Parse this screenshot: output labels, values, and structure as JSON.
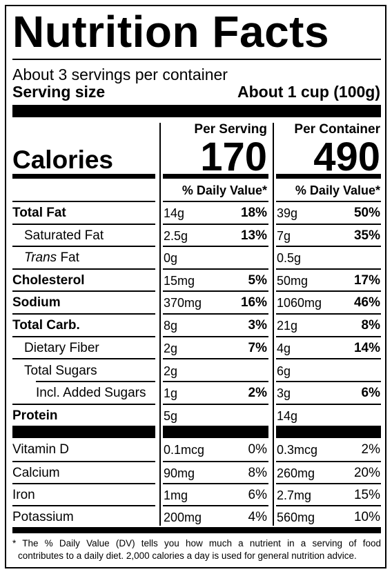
{
  "title": "Nutrition Facts",
  "servings_per_container": "About 3 servings per container",
  "serving_size_label": "Serving size",
  "serving_size_value": "About 1 cup (100g)",
  "per_serving_label": "Per Serving",
  "per_container_label": "Per Container",
  "calories_label": "Calories",
  "calories_per_serving": "170",
  "calories_per_container": "490",
  "dv_label": "% Daily Value*",
  "nutrients": [
    {
      "name": "Total Fat",
      "ps_amt": "14g",
      "ps_pct": "18%",
      "pc_amt": "39g",
      "pc_pct": "50%"
    },
    {
      "name": "Saturated Fat",
      "ps_amt": "2.5g",
      "ps_pct": "13%",
      "pc_amt": "7g",
      "pc_pct": "35%"
    },
    {
      "name_italic": "Trans",
      "name_rest": " Fat",
      "ps_amt": "0g",
      "ps_pct": "",
      "pc_amt": "0.5g",
      "pc_pct": ""
    },
    {
      "name": "Cholesterol",
      "ps_amt": "15mg",
      "ps_pct": "5%",
      "pc_amt": "50mg",
      "pc_pct": "17%"
    },
    {
      "name": "Sodium",
      "ps_amt": "370mg",
      "ps_pct": "16%",
      "pc_amt": "1060mg",
      "pc_pct": "46%"
    },
    {
      "name": "Total Carb.",
      "ps_amt": "8g",
      "ps_pct": "3%",
      "pc_amt": "21g",
      "pc_pct": "8%"
    },
    {
      "name": "Dietary Fiber",
      "ps_amt": "2g",
      "ps_pct": "7%",
      "pc_amt": "4g",
      "pc_pct": "14%"
    },
    {
      "name": "Total Sugars",
      "ps_amt": "2g",
      "ps_pct": "",
      "pc_amt": "6g",
      "pc_pct": ""
    },
    {
      "name": "Incl. Added Sugars",
      "ps_amt": "1g",
      "ps_pct": "2%",
      "pc_amt": "3g",
      "pc_pct": "6%"
    },
    {
      "name": "Protein",
      "ps_amt": "5g",
      "ps_pct": "",
      "pc_amt": "14g",
      "pc_pct": ""
    }
  ],
  "vitamins": [
    {
      "name": "Vitamin D",
      "ps_amt": "0.1mcg",
      "ps_pct": "0%",
      "pc_amt": "0.3mcg",
      "pc_pct": "2%"
    },
    {
      "name": "Calcium",
      "ps_amt": "90mg",
      "ps_pct": "8%",
      "pc_amt": "260mg",
      "pc_pct": "20%"
    },
    {
      "name": "Iron",
      "ps_amt": "1mg",
      "ps_pct": "6%",
      "pc_amt": "2.7mg",
      "pc_pct": "15%"
    },
    {
      "name": "Potassium",
      "ps_amt": "200mg",
      "ps_pct": "4%",
      "pc_amt": "560mg",
      "pc_pct": "10%"
    }
  ],
  "footnote_line1": "* The % Daily Value (DV) tells you how much a nutrient in a serving of food",
  "footnote_line2": "contributes to a daily diet. 2,000 calories a day is used for general nutrition advice."
}
